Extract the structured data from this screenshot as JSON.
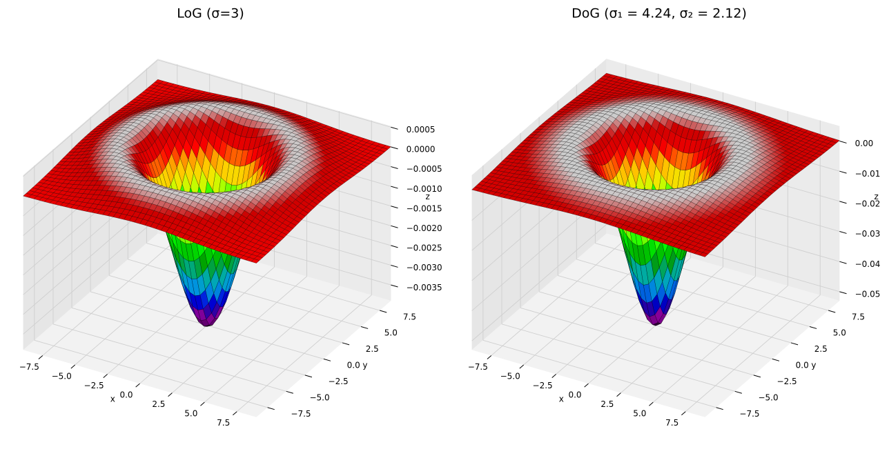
{
  "chart_data": [
    {
      "type": "surface",
      "title": "LoG (σ=3)",
      "sigma": 3,
      "colormap": "nipy_spectral",
      "xlabel": "x",
      "ylabel": "y",
      "zlabel": "z",
      "xlim": [
        -9,
        9
      ],
      "ylim": [
        -9,
        9
      ],
      "zlim": [
        -0.0039,
        0.00053
      ],
      "xticks": [
        {
          "value": -7.5,
          "label": "−7.5"
        },
        {
          "value": -5,
          "label": "−5.0"
        },
        {
          "value": -2.5,
          "label": "−2.5"
        },
        {
          "value": 0,
          "label": "0.0"
        },
        2.5,
        {
          "value": 5,
          "label": "5.0"
        },
        7.5
      ],
      "yticks": [
        {
          "value": -7.5,
          "label": "−7.5"
        },
        {
          "value": -5,
          "label": "−5.0"
        },
        {
          "value": -2.5,
          "label": "−2.5"
        },
        {
          "value": 0,
          "label": "0.0"
        },
        2.5,
        {
          "value": 5,
          "label": "5.0"
        },
        7.5
      ],
      "zticks": [
        0.0005,
        {
          "value": 0,
          "label": "0.0000"
        },
        {
          "value": -0.0005,
          "label": "−0.0005"
        },
        {
          "value": -0.001,
          "label": "−0.0010"
        },
        {
          "value": -0.0015,
          "label": "−0.0015"
        },
        {
          "value": -0.002,
          "label": "−0.0020"
        },
        {
          "value": -0.0025,
          "label": "−0.0025"
        },
        {
          "value": -0.003,
          "label": "−0.0030"
        },
        {
          "value": -0.0035,
          "label": "−0.0035"
        }
      ],
      "grid": true
    },
    {
      "type": "surface",
      "title": "DoG (σ₁ = 4.24, σ₂ = 2.12)",
      "sigmas": [
        4.24,
        2.12
      ],
      "colormap": "nipy_spectral",
      "xlabel": "x",
      "ylabel": "y",
      "zlabel": "z",
      "xlim": [
        -9,
        9
      ],
      "ylim": [
        -9,
        9
      ],
      "zlim": [
        -0.053,
        0.005
      ],
      "xticks": [
        {
          "value": -7.5,
          "label": "−7.5"
        },
        {
          "value": -5,
          "label": "−5.0"
        },
        {
          "value": -2.5,
          "label": "−2.5"
        },
        {
          "value": 0,
          "label": "0.0"
        },
        2.5,
        {
          "value": 5,
          "label": "5.0"
        },
        7.5
      ],
      "yticks": [
        {
          "value": -7.5,
          "label": "−7.5"
        },
        {
          "value": -5,
          "label": "−5.0"
        },
        {
          "value": -2.5,
          "label": "−2.5"
        },
        {
          "value": 0,
          "label": "0.0"
        },
        2.5,
        {
          "value": 5,
          "label": "5.0"
        },
        7.5
      ],
      "zticks": [
        {
          "value": 0,
          "label": "0.00"
        },
        {
          "value": -0.01,
          "label": "−0.01"
        },
        {
          "value": -0.02,
          "label": "−0.02"
        },
        {
          "value": -0.03,
          "label": "−0.03"
        },
        {
          "value": -0.04,
          "label": "−0.04"
        },
        {
          "value": -0.05,
          "label": "−0.05"
        }
      ],
      "grid": true
    }
  ]
}
